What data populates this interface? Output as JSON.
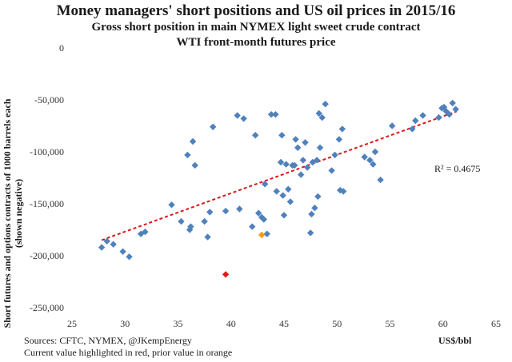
{
  "title": "Money managers' short positions and US oil prices in 2015/16",
  "subtitle1": "Gross short position in main NYMEX light sweet crude contract",
  "subtitle2": "WTI front-month futures price",
  "footnote1": "Sources: CFTC, NYMEX, @JKempEnergy",
  "footnote2": "Current value highlighted in red, prior value in orange",
  "r_squared": "R² = 0.4675",
  "colors": {
    "points": "#4f81bd",
    "current": "#e31a1c",
    "prior": "#f59d0a",
    "trend": "#d7191c"
  },
  "chart_data": {
    "type": "scatter",
    "xlabel": "US$/bbl",
    "ylabel_line1": "Short futures and options contracts of 1000 barrels each",
    "ylabel_line2": "(shown negative)",
    "xlim": [
      25,
      65
    ],
    "ylim": [
      -250000,
      0
    ],
    "xticks": [
      25,
      30,
      35,
      40,
      45,
      50,
      55,
      60,
      65
    ],
    "yticks": [
      0,
      -50000,
      -100000,
      -150000,
      -200000,
      -250000
    ],
    "ytick_labels": [
      "0",
      "-50,000",
      "-100,000",
      "-150,000",
      "-200,000",
      "-250,000"
    ],
    "points": [
      [
        27.8,
        -192000
      ],
      [
        28.3,
        -186000
      ],
      [
        28.9,
        -189000
      ],
      [
        29.8,
        -196000
      ],
      [
        30.4,
        -201000
      ],
      [
        31.5,
        -179000
      ],
      [
        31.9,
        -177000
      ],
      [
        34.4,
        -151000
      ],
      [
        35.3,
        -167000
      ],
      [
        35.9,
        -103000
      ],
      [
        36.1,
        -175000
      ],
      [
        36.2,
        -172000
      ],
      [
        36.4,
        -90000
      ],
      [
        36.6,
        -113000
      ],
      [
        37.5,
        -167000
      ],
      [
        37.8,
        -182000
      ],
      [
        38.0,
        -158000
      ],
      [
        38.3,
        -76000
      ],
      [
        39.5,
        -157000
      ],
      [
        40.6,
        -65000
      ],
      [
        40.8,
        -155000
      ],
      [
        41.2,
        -68000
      ],
      [
        42.0,
        -172000
      ],
      [
        42.3,
        -84000
      ],
      [
        42.6,
        -159000
      ],
      [
        42.9,
        -163000
      ],
      [
        43.1,
        -165000
      ],
      [
        43.2,
        -131000
      ],
      [
        43.4,
        -179000
      ],
      [
        43.8,
        -64000
      ],
      [
        44.2,
        -64000
      ],
      [
        44.3,
        -138000
      ],
      [
        44.7,
        -110000
      ],
      [
        44.8,
        -84000
      ],
      [
        44.9,
        -142000
      ],
      [
        45.0,
        -161000
      ],
      [
        45.2,
        -112000
      ],
      [
        45.4,
        -136000
      ],
      [
        45.6,
        -148000
      ],
      [
        45.8,
        -113000
      ],
      [
        46.0,
        -113000
      ],
      [
        46.1,
        -88000
      ],
      [
        46.3,
        -96000
      ],
      [
        46.6,
        -122000
      ],
      [
        46.8,
        -108000
      ],
      [
        47.0,
        -91000
      ],
      [
        47.2,
        -115000
      ],
      [
        47.5,
        -178000
      ],
      [
        47.6,
        -160000
      ],
      [
        47.7,
        -110000
      ],
      [
        47.9,
        -154000
      ],
      [
        48.1,
        -108000
      ],
      [
        48.2,
        -143000
      ],
      [
        48.3,
        -63000
      ],
      [
        48.4,
        -96000
      ],
      [
        48.6,
        -67000
      ],
      [
        48.9,
        -54000
      ],
      [
        49.5,
        -118000
      ],
      [
        49.8,
        -103000
      ],
      [
        50.2,
        -88000
      ],
      [
        50.3,
        -137000
      ],
      [
        50.6,
        -138000
      ],
      [
        50.5,
        -78000
      ],
      [
        52.6,
        -105000
      ],
      [
        53.1,
        -108000
      ],
      [
        53.4,
        -112000
      ],
      [
        53.6,
        -100000
      ],
      [
        54.1,
        -127000
      ],
      [
        55.2,
        -75000
      ],
      [
        57.1,
        -78000
      ],
      [
        57.4,
        -70000
      ],
      [
        58.1,
        -65000
      ],
      [
        59.6,
        -67000
      ],
      [
        59.9,
        -58000
      ],
      [
        60.1,
        -57000
      ],
      [
        60.3,
        -61000
      ],
      [
        60.6,
        -64000
      ],
      [
        60.9,
        -53000
      ],
      [
        61.2,
        -59000
      ]
    ],
    "prior_point": [
      42.9,
      -180000
    ],
    "current_point": [
      39.5,
      -218000
    ],
    "trendline": {
      "x": [
        27.8,
        61.3
      ],
      "y": [
        -185000,
        -61000
      ]
    }
  }
}
